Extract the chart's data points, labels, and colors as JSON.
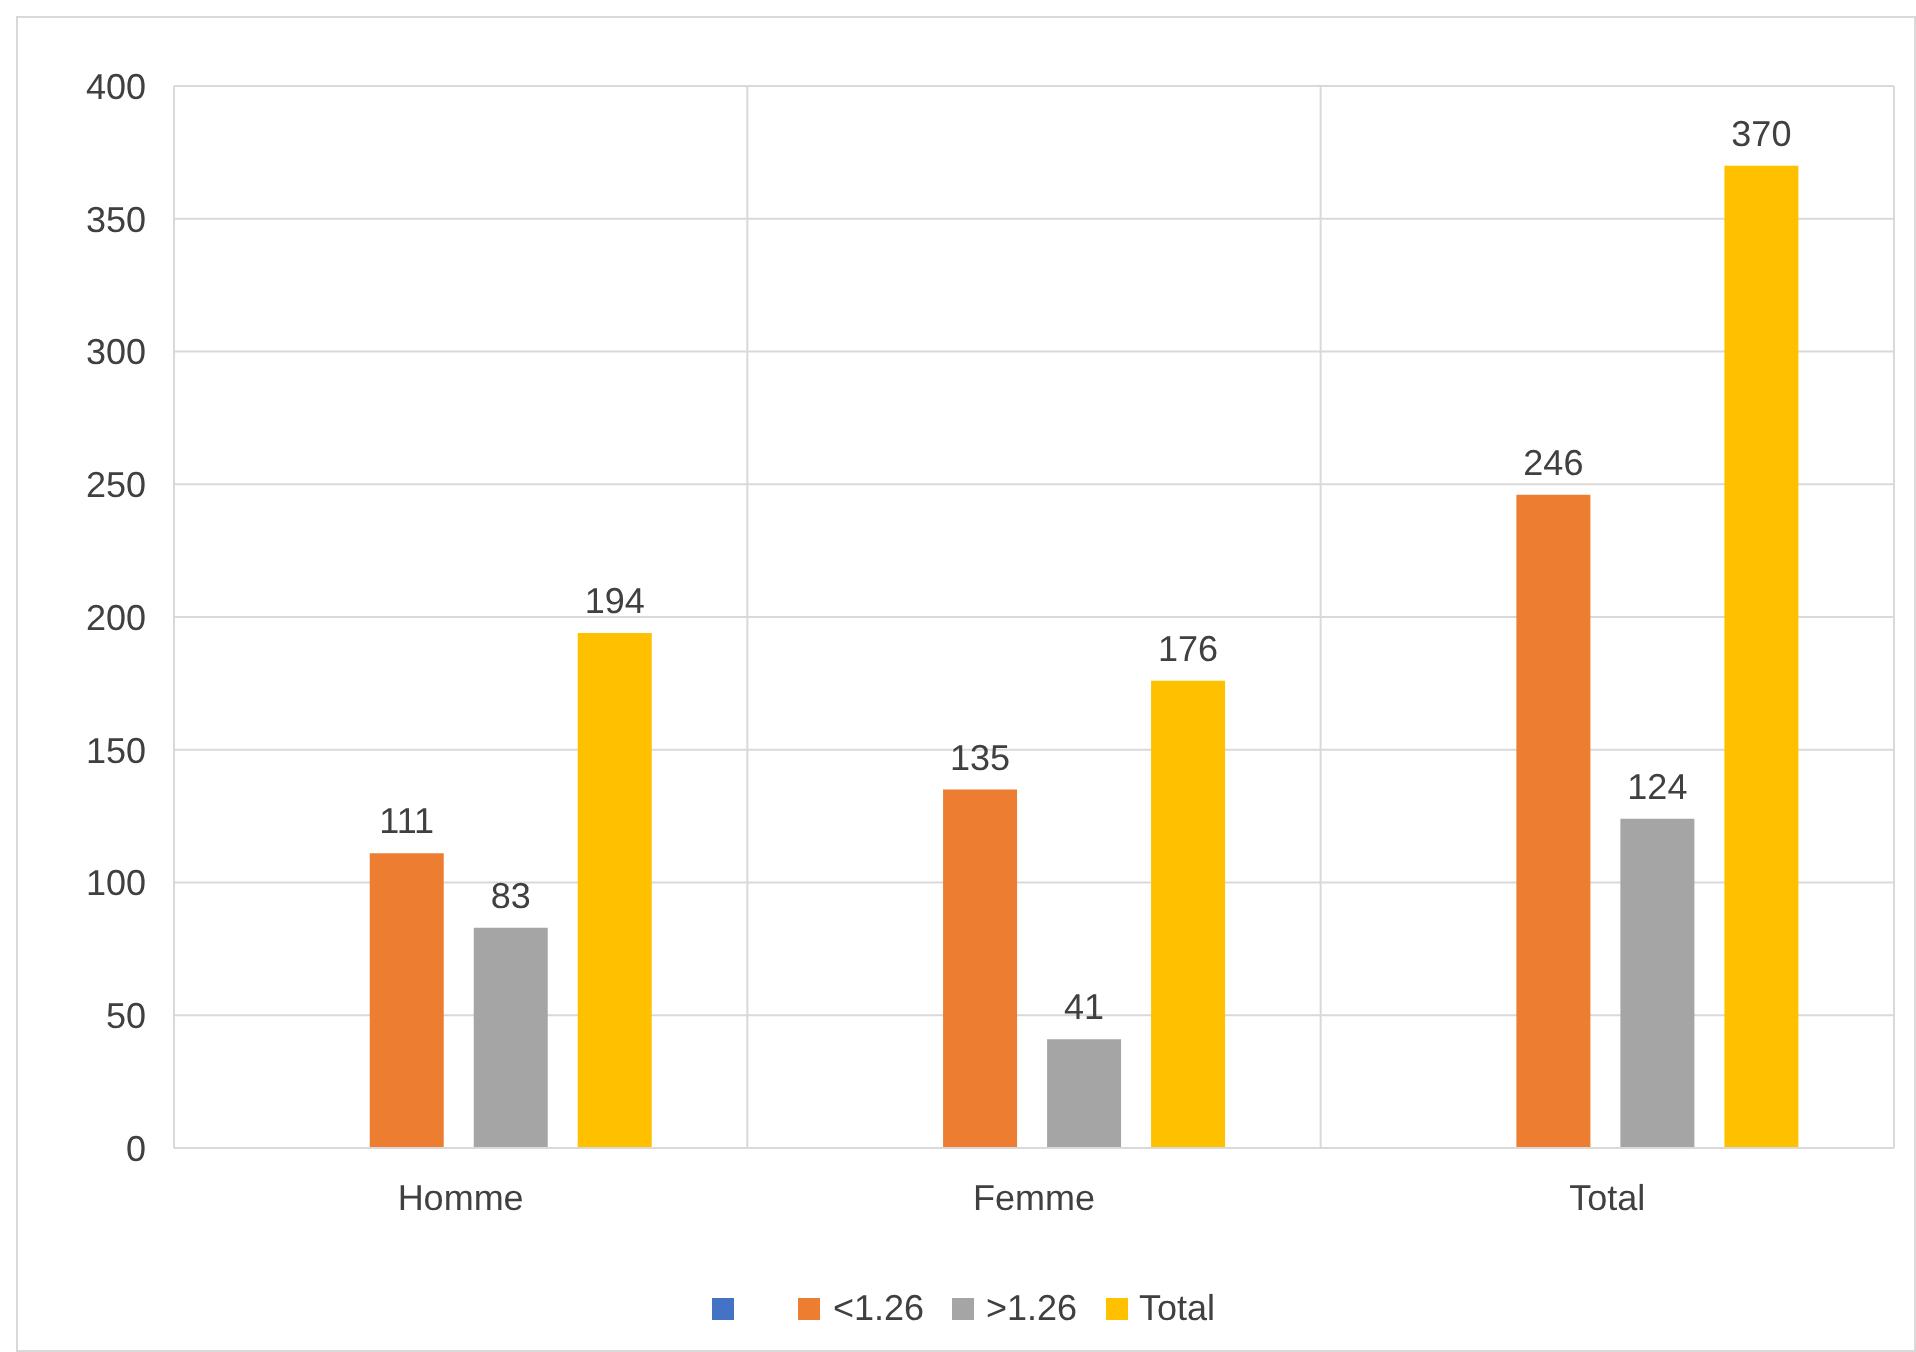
{
  "chart_data": {
    "type": "bar",
    "categories": [
      "Homme",
      "Femme",
      "Total"
    ],
    "series": [
      {
        "color": "#4472c4",
        "values": [
          null,
          null,
          null
        ]
      },
      {
        "name": "<1.26",
        "color": "#ed7d31",
        "values": [
          111,
          135,
          246
        ]
      },
      {
        "name": ">1.26",
        "color": "#a5a5a5",
        "values": [
          83,
          41,
          124
        ]
      },
      {
        "name": "Total",
        "color": "#ffc000",
        "values": [
          194,
          176,
          370
        ]
      }
    ],
    "ylim": [
      0,
      400
    ],
    "yticks": [
      0,
      50,
      100,
      150,
      200,
      250,
      300,
      350,
      400
    ],
    "grid": true,
    "legend": "bottom",
    "data_labels": true
  }
}
